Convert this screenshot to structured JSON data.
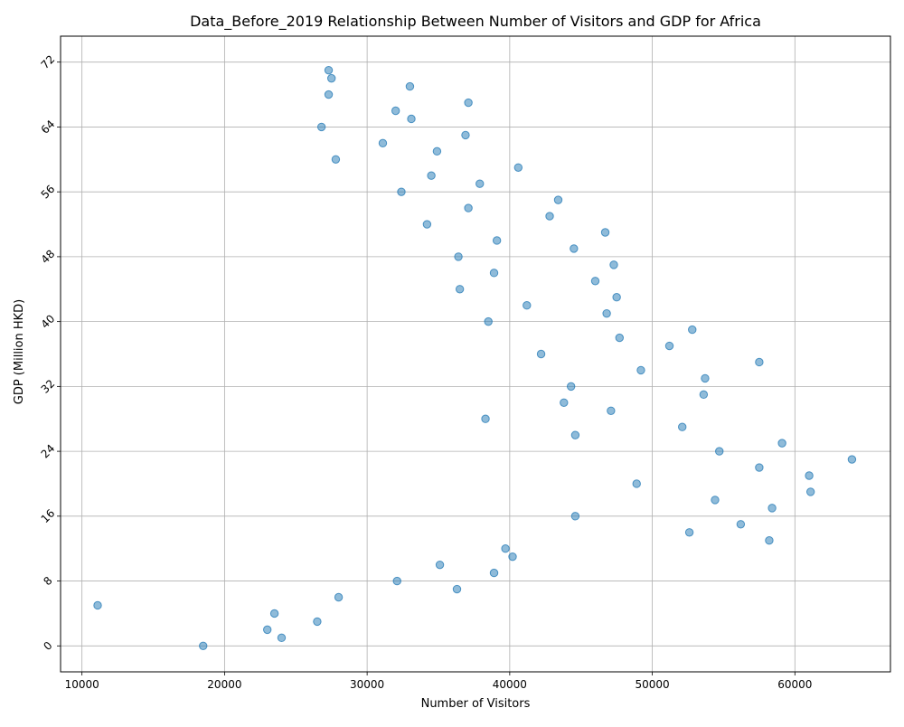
{
  "chart_data": {
    "type": "scatter",
    "title": "Data_Before_2019 Relationship Between Number of Visitors and GDP for Africa",
    "xlabel": "Number of Visitors",
    "ylabel": "GDP (Million HKD)",
    "xlim": [
      8500,
      66700
    ],
    "ylim": [
      -3.2,
      75.2
    ],
    "xticks": [
      10000,
      20000,
      30000,
      40000,
      50000,
      60000
    ],
    "yticks": [
      0,
      8,
      16,
      24,
      32,
      40,
      48,
      56,
      64,
      72
    ],
    "ytick_rotation": 45,
    "grid": true,
    "marker_color": "#1f77b4",
    "marker_alpha": 0.5,
    "series": [
      {
        "points": [
          [
            18500,
            0
          ],
          [
            24000,
            1
          ],
          [
            23000,
            2
          ],
          [
            26500,
            3
          ],
          [
            23500,
            4
          ],
          [
            11100,
            5
          ],
          [
            28000,
            6
          ],
          [
            36300,
            7
          ],
          [
            32100,
            8
          ],
          [
            38900,
            9
          ],
          [
            35100,
            10
          ],
          [
            40200,
            11
          ],
          [
            39700,
            12
          ],
          [
            58200,
            13
          ],
          [
            52600,
            14
          ],
          [
            56200,
            15
          ],
          [
            44600,
            16
          ],
          [
            58400,
            17
          ],
          [
            54400,
            18
          ],
          [
            61100,
            19
          ],
          [
            48900,
            20
          ],
          [
            61000,
            21
          ],
          [
            57500,
            22
          ],
          [
            64000,
            23
          ],
          [
            54700,
            24
          ],
          [
            59100,
            25
          ],
          [
            44600,
            26
          ],
          [
            52100,
            27
          ],
          [
            38300,
            28
          ],
          [
            47100,
            29
          ],
          [
            43800,
            30
          ],
          [
            53600,
            31
          ],
          [
            44300,
            32
          ],
          [
            53700,
            33
          ],
          [
            49200,
            34
          ],
          [
            57500,
            35
          ],
          [
            42200,
            36
          ],
          [
            51200,
            37
          ],
          [
            47700,
            38
          ],
          [
            52800,
            39
          ],
          [
            38500,
            40
          ],
          [
            46800,
            41
          ],
          [
            41200,
            42
          ],
          [
            47500,
            43
          ],
          [
            36500,
            44
          ],
          [
            46000,
            45
          ],
          [
            38900,
            46
          ],
          [
            47300,
            47
          ],
          [
            36400,
            48
          ],
          [
            44500,
            49
          ],
          [
            39100,
            50
          ],
          [
            46700,
            51
          ],
          [
            34200,
            52
          ],
          [
            42800,
            53
          ],
          [
            37100,
            54
          ],
          [
            43400,
            55
          ],
          [
            32400,
            56
          ],
          [
            37900,
            57
          ],
          [
            34500,
            58
          ],
          [
            40600,
            59
          ],
          [
            27800,
            60
          ],
          [
            34900,
            61
          ],
          [
            31100,
            62
          ],
          [
            36900,
            63
          ],
          [
            26800,
            64
          ],
          [
            33100,
            65
          ],
          [
            32000,
            66
          ],
          [
            37100,
            67
          ],
          [
            27300,
            68
          ],
          [
            33000,
            69
          ],
          [
            27500,
            70
          ],
          [
            27300,
            71
          ]
        ]
      }
    ]
  }
}
